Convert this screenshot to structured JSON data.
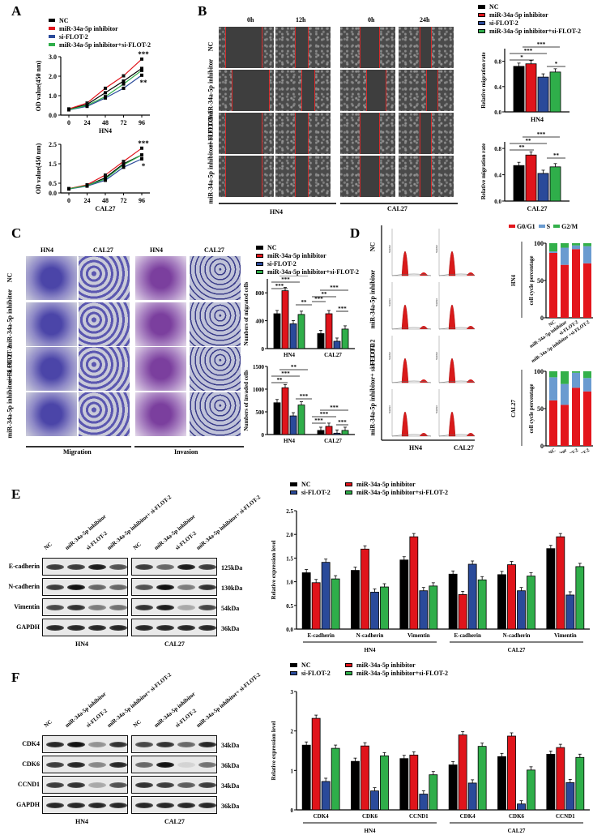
{
  "colors": {
    "NC": "#000000",
    "inhibitor": "#e0141b",
    "siFLOT2": "#2a4a9a",
    "combo": "#2fae4a",
    "G0G1": "#e3161c",
    "S": "#6a9bd0",
    "G2M": "#33b04a",
    "scratch_line": "#d42a2a"
  },
  "groups": [
    "NC",
    "miR-34a-5p inhibitor",
    "si-FLOT-2",
    "miR-34a-5p inhibitor+si-FLOT-2"
  ],
  "panelA": {
    "letter": "A",
    "legend": [
      "NC",
      "miR-34a-5p inhibitor",
      "si-FLOT-2",
      "miR-34a-5p inhibitor+si-FLOT-2"
    ]
  },
  "panelB": {
    "letter": "B",
    "time_labels": [
      "0h",
      "12h",
      "0h",
      "24h"
    ],
    "row_labels": [
      "NC",
      "miR-34a-5p inhibitor",
      "si-FLOT-2",
      "miR-34a-5p inhibitor+ si FLOT-2"
    ],
    "cell_lines": [
      "HN4",
      "CAL27"
    ],
    "legend": [
      "NC",
      "miR-34a-5p inhibitor",
      "si-FLOT-2",
      "miR-34a-5p inhibitor+si-FLOT-2"
    ]
  },
  "panelC": {
    "letter": "C",
    "col_labels": [
      "HN4",
      "CAL27",
      "HN4",
      "CAL27"
    ],
    "row_labels": [
      "NC",
      "miR-34a-5p inhibitor",
      "si-FLOT-2",
      "miR-34a-5p inhibitor+ si FLOT-2"
    ],
    "section_labels": [
      "Migration",
      "Invasion"
    ],
    "legend": [
      "NC",
      "miR-34a-5p inhibitor",
      "si-FLOT-2",
      "miR-34a-5p inhibitor+si-FLOT-2"
    ]
  },
  "panelD": {
    "letter": "D",
    "row_labels": [
      "NC",
      "miR-34a-5p inhibitor",
      "si-FLOT-2",
      "miR-34a-5p inhibitor+ si FLOT-2"
    ],
    "col_labels": [
      "HN4",
      "CAL27"
    ],
    "hist_ylabel": "Number",
    "legend": [
      "G0/G1",
      "S",
      "G2/M"
    ]
  },
  "panelE": {
    "letter": "E",
    "lanes": [
      "NC",
      "miR-34a-5p inhibitor",
      "si-FLOT-2",
      "miR-34a-5p inhibitor+ si-FLOT-2"
    ],
    "proteins": [
      "E-cadherin",
      "N-cadherin",
      "Vimentin",
      "GAPDH"
    ],
    "kda": [
      "125kDa",
      "130kDa",
      "54kDa",
      "36kDa"
    ],
    "cell_lines": [
      "HN4",
      "CAL27"
    ]
  },
  "panelF": {
    "letter": "F",
    "lanes": [
      "NC",
      "miR-34a-5p inhibitor",
      "si-FLOT-2",
      "miR-34a-5p inhibitor+ si-FLOT-2"
    ],
    "proteins": [
      "CDK4",
      "CDK6",
      "CCND1",
      "GAPDH"
    ],
    "kda": [
      "34kDa",
      "36kDa",
      "34kDa",
      "36kDa"
    ],
    "cell_lines": [
      "HN4",
      "CAL27"
    ]
  },
  "chart_data": [
    {
      "id": "A-HN4",
      "type": "line",
      "title": "",
      "xlabel": "HN4",
      "ylabel": "OD value(450 nm)",
      "x": [
        0,
        24,
        48,
        72,
        96
      ],
      "ylim": [
        0,
        3.0
      ],
      "yticks": [
        "0.0",
        "1.0",
        "2.0",
        "3.0"
      ],
      "series": [
        {
          "name": "NC",
          "values": [
            0.3,
            0.55,
            1.15,
            1.75,
            2.4
          ]
        },
        {
          "name": "miR-34a-5p inhibitor",
          "values": [
            0.32,
            0.62,
            1.38,
            2.02,
            2.88
          ]
        },
        {
          "name": "si-FLOT-2",
          "values": [
            0.27,
            0.45,
            0.88,
            1.38,
            2.05
          ]
        },
        {
          "name": "miR-34a-5p inhibitor+si-FLOT-2",
          "values": [
            0.28,
            0.5,
            0.95,
            1.6,
            2.3
          ]
        }
      ],
      "annotations": [
        "***",
        "**"
      ]
    },
    {
      "id": "A-CAL27",
      "type": "line",
      "title": "",
      "xlabel": "CAL27",
      "ylabel": "OD value(450 nm)",
      "x": [
        0,
        24,
        48,
        72,
        96
      ],
      "ylim": [
        0,
        2.5
      ],
      "yticks": [
        "0.0",
        "0.5",
        "1.5",
        "2.5"
      ],
      "series": [
        {
          "name": "NC",
          "values": [
            0.22,
            0.38,
            0.78,
            1.5,
            1.95
          ]
        },
        {
          "name": "miR-34a-5p inhibitor",
          "values": [
            0.22,
            0.42,
            0.92,
            1.62,
            2.3
          ]
        },
        {
          "name": "si-FLOT-2",
          "values": [
            0.2,
            0.35,
            0.65,
            1.32,
            1.75
          ]
        },
        {
          "name": "miR-34a-5p inhibitor+si-FLOT-2",
          "values": [
            0.21,
            0.38,
            0.72,
            1.45,
            1.95
          ]
        }
      ],
      "annotations": [
        "***",
        "*"
      ]
    },
    {
      "id": "B-HN4",
      "type": "bar",
      "xlabel": "HN4",
      "ylabel": "Relative migration rate",
      "categories": [
        "NC",
        "miR-34a-5p inhibitor",
        "si-FLOT-2",
        "miR-34a-5p inhibitor+si-FLOT-2"
      ],
      "values": [
        0.72,
        0.76,
        0.55,
        0.63
      ],
      "ylim": [
        0,
        1.0
      ],
      "yticks": [
        "0.0",
        "0.4",
        "0.8"
      ],
      "annotations": [
        "*",
        "***",
        "***",
        "*"
      ]
    },
    {
      "id": "B-CAL27",
      "type": "bar",
      "xlabel": "CAL27",
      "ylabel": "Relative migration rate",
      "categories": [
        "NC",
        "miR-34a-5p inhibitor",
        "si-FLOT-2",
        "miR-34a-5p inhibitor+si-FLOT-2"
      ],
      "values": [
        0.54,
        0.7,
        0.42,
        0.52
      ],
      "ylim": [
        0,
        0.9
      ],
      "yticks": [
        "0.0",
        "0.4",
        "0.8"
      ],
      "annotations": [
        "**",
        "**",
        "***",
        "**"
      ]
    },
    {
      "id": "C-migrated",
      "type": "bar",
      "ylabel": "Numbers of migrated cells",
      "categories": [
        "HN4",
        "CAL27"
      ],
      "ylim": [
        0,
        1000
      ],
      "yticks": [
        "0",
        "400",
        "800"
      ],
      "series": [
        {
          "name": "NC",
          "values": [
            500,
            215
          ]
        },
        {
          "name": "miR-34a-5p inhibitor",
          "values": [
            830,
            500
          ]
        },
        {
          "name": "si-FLOT-2",
          "values": [
            355,
            105
          ]
        },
        {
          "name": "miR-34a-5p inhibitor+si-FLOT-2",
          "values": [
            490,
            280
          ]
        }
      ],
      "annotations": [
        "***",
        "***",
        "***",
        "**",
        "***",
        "**",
        "***",
        "***"
      ]
    },
    {
      "id": "C-invaded",
      "type": "bar",
      "ylabel": "Numbers of invaded cells",
      "categories": [
        "HN4",
        "CAL27"
      ],
      "ylim": [
        0,
        1500
      ],
      "yticks": [
        "0",
        "500",
        "1000",
        "1500"
      ],
      "series": [
        {
          "name": "NC",
          "values": [
            700,
            90
          ]
        },
        {
          "name": "miR-34a-5p inhibitor",
          "values": [
            1030,
            180
          ]
        },
        {
          "name": "si-FLOT-2",
          "values": [
            410,
            30
          ]
        },
        {
          "name": "miR-34a-5p inhibitor+si-FLOT-2",
          "values": [
            650,
            90
          ]
        }
      ],
      "annotations": [
        "**",
        "***",
        "**",
        "***",
        "***",
        "***",
        "***",
        "***"
      ]
    },
    {
      "id": "D-HN4",
      "type": "bar",
      "stacked": true,
      "ylabel": "cell cycle percentage",
      "title": "HN4",
      "categories": [
        "NC",
        "miR-34a-5p inhibitor",
        "si-FLOT-2",
        "miR-34a-5p inhibitor +si-FLOT-2"
      ],
      "ylim": [
        0,
        100
      ],
      "yticks": [
        "0",
        "50",
        "100"
      ],
      "series": [
        {
          "name": "G0/G1",
          "values": [
            87,
            71,
            92,
            73
          ]
        },
        {
          "name": "S",
          "values": [
            2,
            23,
            5,
            23
          ]
        },
        {
          "name": "G2/M",
          "values": [
            11,
            6,
            3,
            4
          ]
        }
      ]
    },
    {
      "id": "D-CAL27",
      "type": "bar",
      "stacked": true,
      "ylabel": "cell cycle percentage",
      "title": "CAL27",
      "categories": [
        "NC",
        "miR-34a-5p inhibitor",
        "si-FLOT-2",
        "miR-34a-5p inhibitor +si-FLOT-2"
      ],
      "ylim": [
        0,
        100
      ],
      "yticks": [
        "0",
        "50",
        "100"
      ],
      "series": [
        {
          "name": "G0/G1",
          "values": [
            61,
            55,
            78,
            73
          ]
        },
        {
          "name": "S",
          "values": [
            31,
            28,
            20,
            18
          ]
        },
        {
          "name": "G2/M",
          "values": [
            8,
            17,
            2,
            9
          ]
        }
      ]
    },
    {
      "id": "E-quant",
      "type": "bar",
      "ylabel": "Relative expression level",
      "categories": [
        "E-cadherin",
        "N-cadherin",
        "Vimentin",
        "E-cadherin",
        "N-cadherin",
        "Vimentin"
      ],
      "group_labels": [
        "HN4",
        "CAL27"
      ],
      "ylim": [
        0,
        2.5
      ],
      "yticks": [
        "0.0",
        "0.5",
        "1.0",
        "1.5",
        "2.0",
        "2.5"
      ],
      "series": [
        {
          "name": "NC",
          "values": [
            1.19,
            1.24,
            1.46,
            1.16,
            1.15,
            1.7
          ]
        },
        {
          "name": "miR-34a-5p inhibitor",
          "values": [
            0.98,
            1.69,
            1.95,
            0.73,
            1.36,
            1.95
          ]
        },
        {
          "name": "si-FLOT-2",
          "values": [
            1.41,
            0.78,
            0.81,
            1.37,
            0.81,
            0.72
          ]
        },
        {
          "name": "miR-34a-5p inhibitor+si-FLOT-2",
          "values": [
            1.06,
            0.89,
            0.91,
            1.04,
            1.12,
            1.32
          ]
        }
      ]
    },
    {
      "id": "F-quant",
      "type": "bar",
      "ylabel": "Relative expression level",
      "categories": [
        "CDK4",
        "CDK6",
        "CCND1",
        "CDK4",
        "CDK6",
        "CCND1"
      ],
      "group_labels": [
        "HN4",
        "CAL27"
      ],
      "ylim": [
        0,
        3
      ],
      "yticks": [
        "0",
        "1",
        "2",
        "3"
      ],
      "series": [
        {
          "name": "NC",
          "values": [
            1.64,
            1.23,
            1.3,
            1.14,
            1.35,
            1.41
          ]
        },
        {
          "name": "miR-34a-5p inhibitor",
          "values": [
            2.32,
            1.62,
            1.39,
            1.9,
            1.87,
            1.58
          ]
        },
        {
          "name": "si-FLOT-2",
          "values": [
            0.72,
            0.48,
            0.4,
            0.68,
            0.15,
            0.69
          ]
        },
        {
          "name": "miR-34a-5p inhibitor+si-FLOT-2",
          "values": [
            1.56,
            1.37,
            0.89,
            1.61,
            1.01,
            1.33
          ]
        }
      ]
    }
  ]
}
